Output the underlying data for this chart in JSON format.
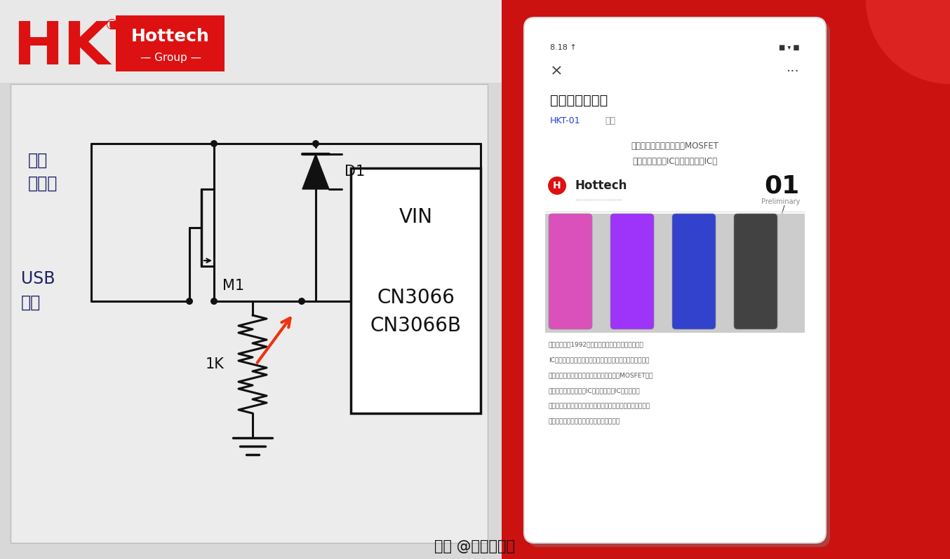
{
  "bg_left": "#e0e0e0",
  "bg_right": "#cc1111",
  "white": "#ffffff",
  "red": "#cc1111",
  "black": "#111111",
  "navy": "#1a1a4e",
  "label_wall": "墙上\n适配器",
  "label_usb": "USB\n电源",
  "label_m1": "M1",
  "label_d1": "D1",
  "label_1k": "1K",
  "label_vin": "VIN",
  "label_cn3066": "CN3066",
  "label_cn3066b": "CN3066B",
  "footer": "头条 @深圳台科泰",
  "phone_title": "分立器件信息馆",
  "phone_sub_blue": "HKT-01",
  "phone_sub_gray": "今天",
  "phone_content1": "二极管、三极管、稳压、MOSFET",
  "phone_content2": "整流管、电源管IC、锂电池保抷IC等",
  "phone_hottech": "Hottech",
  "phone_01": "01",
  "hkt_red": "#dd1111",
  "circuit_lw": 2.2,
  "circuit_color": "#111111",
  "dot_r": 5
}
